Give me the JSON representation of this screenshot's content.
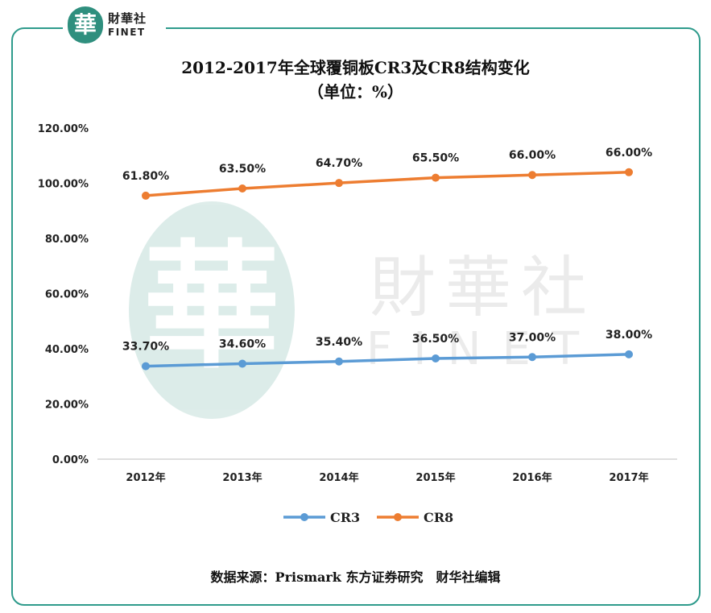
{
  "header": {
    "logo_seal_text": "華",
    "logo_cn": "財華社",
    "logo_en": "FINET"
  },
  "watermark": {
    "seal_text": "華",
    "cn": "財華社",
    "en": "FINET"
  },
  "chart_data": {
    "type": "line",
    "title": "2012-2017年全球覆铜板CR3及CR8结构变化",
    "subtitle": "（单位：%）",
    "categories": [
      "2012年",
      "2013年",
      "2014年",
      "2015年",
      "2016年",
      "2017年"
    ],
    "ylim": [
      0,
      120
    ],
    "yticks": [
      0,
      20,
      40,
      60,
      80,
      100,
      120
    ],
    "ytick_labels": [
      "0.00%",
      "20.00%",
      "40.00%",
      "60.00%",
      "80.00%",
      "100.00%",
      "120.00%"
    ],
    "grid": false,
    "legend_position": "bottom",
    "series": [
      {
        "name": "CR3",
        "color": "#5b9bd5",
        "plot_values": [
          33.7,
          34.6,
          35.4,
          36.5,
          37.0,
          38.0
        ],
        "labels": [
          "33.70%",
          "34.60%",
          "35.40%",
          "36.50%",
          "37.00%",
          "38.00%"
        ]
      },
      {
        "name": "CR8",
        "color": "#ed7d31",
        "plot_values": [
          95.5,
          98.1,
          100.1,
          102.0,
          103.0,
          104.0
        ],
        "labels": [
          "61.80%",
          "63.50%",
          "64.70%",
          "65.50%",
          "66.00%",
          "66.00%"
        ]
      }
    ]
  },
  "footer": {
    "source": "数据来源：Prismark 东方证券研究　财华社编辑"
  }
}
